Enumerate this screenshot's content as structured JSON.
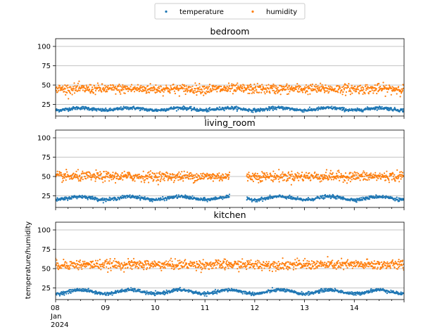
{
  "chart_data": {
    "type": "scatter",
    "legend": {
      "placement": "top-center",
      "entries": [
        {
          "name": "temperature",
          "color": "#1f77b4"
        },
        {
          "name": "humidity",
          "color": "#ff7f0e"
        }
      ]
    },
    "ylabel": "temperature/humidity",
    "ylim": [
      10,
      110
    ],
    "yticks": [
      25,
      50,
      75,
      100
    ],
    "grid": "horizontal",
    "x_range": [
      "2024-01-08",
      "2024-01-15"
    ],
    "xticks": [
      {
        "date": "2024-01-08",
        "label": "08",
        "sub": [
          "Jan",
          "2024"
        ]
      },
      {
        "date": "2024-01-09",
        "label": "09"
      },
      {
        "date": "2024-01-10",
        "label": "10"
      },
      {
        "date": "2024-01-11",
        "label": "11"
      },
      {
        "date": "2024-01-12",
        "label": "12"
      },
      {
        "date": "2024-01-13",
        "label": "13"
      },
      {
        "date": "2024-01-14",
        "label": "14"
      }
    ],
    "panels": [
      {
        "title": "bedroom",
        "series": [
          {
            "name": "temperature",
            "mean": 19,
            "amplitude": 1.5,
            "noise": 1.5
          },
          {
            "name": "humidity",
            "mean": 45,
            "amplitude": 0,
            "noise": 4.5
          }
        ],
        "gaps": []
      },
      {
        "title": "living_room",
        "series": [
          {
            "name": "temperature",
            "mean": 22,
            "amplitude": 2,
            "noise": 1.5
          },
          {
            "name": "humidity",
            "mean": 50,
            "amplitude": 0,
            "noise": 4.5
          }
        ],
        "gaps": [
          [
            "2024-01-11T12:00",
            "2024-01-11T20:00"
          ]
        ]
      },
      {
        "title": "kitchen",
        "series": [
          {
            "name": "temperature",
            "mean": 20,
            "amplitude": 2.5,
            "noise": 1.5
          },
          {
            "name": "humidity",
            "mean": 55,
            "amplitude": 0,
            "noise": 4.5
          }
        ],
        "gaps": []
      }
    ]
  }
}
